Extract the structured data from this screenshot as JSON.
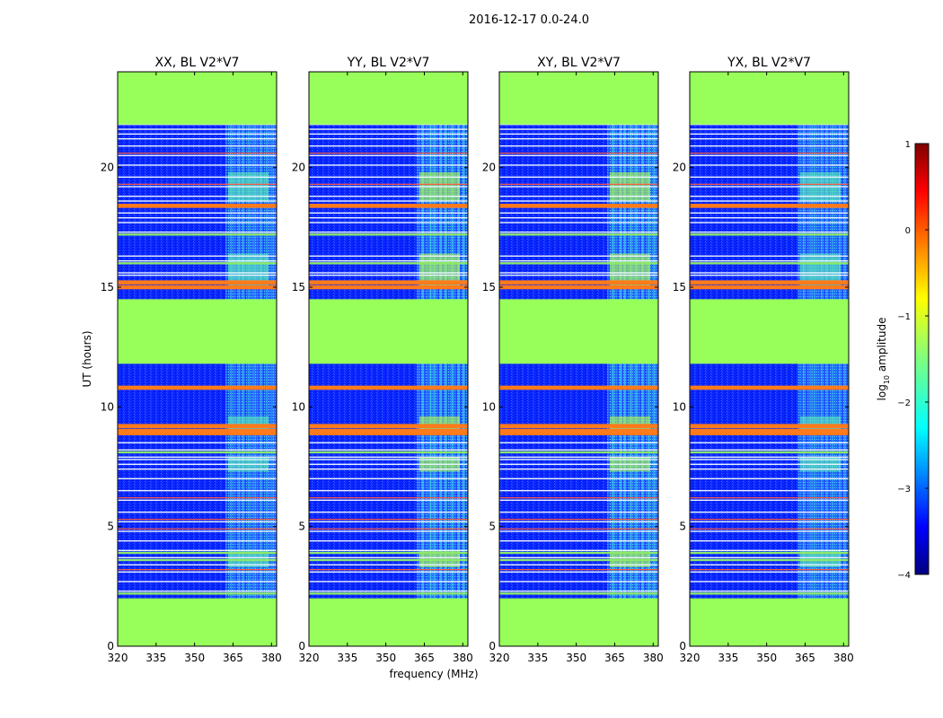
{
  "chart_data": {
    "type": "heatmap",
    "title": "2016-12-17 0.0-24.0",
    "xlabel": "frequency (MHz)",
    "ylabel": "UT (hours)",
    "xlim": [
      320,
      382
    ],
    "ylim": [
      0,
      24
    ],
    "xticks": [
      "320",
      "335",
      "350",
      "365",
      "380"
    ],
    "yticks": [
      "0",
      "5",
      "10",
      "15",
      "20"
    ],
    "panels": [
      {
        "title": "XX, BL V2*V7",
        "strong_block": "weak"
      },
      {
        "title": "YY, BL V2*V7",
        "strong_block": "strong"
      },
      {
        "title": "XY, BL V2*V7",
        "strong_block": "strong"
      },
      {
        "title": "YX, BL V2*V7",
        "strong_block": "weak"
      }
    ],
    "flagged_hours": [
      [
        0,
        2.0
      ],
      [
        11.8,
        14.5
      ],
      [
        21.8,
        24.0
      ]
    ],
    "bright_band_mhz": [
      362,
      382
    ],
    "orange_rows_hours": [
      18.4,
      15.2,
      15.0,
      10.8,
      9.2,
      9.0,
      8.9
    ],
    "colorbar": {
      "label": "log",
      "label_sub": "10",
      "label_rest": " amplitude",
      "min": -4,
      "max": 1,
      "ticks": [
        "1",
        "0",
        "−1",
        "−2",
        "−3",
        "−4"
      ],
      "tick_values": [
        1,
        0,
        -1,
        -2,
        -3,
        -4
      ],
      "cmap": "jet"
    }
  }
}
